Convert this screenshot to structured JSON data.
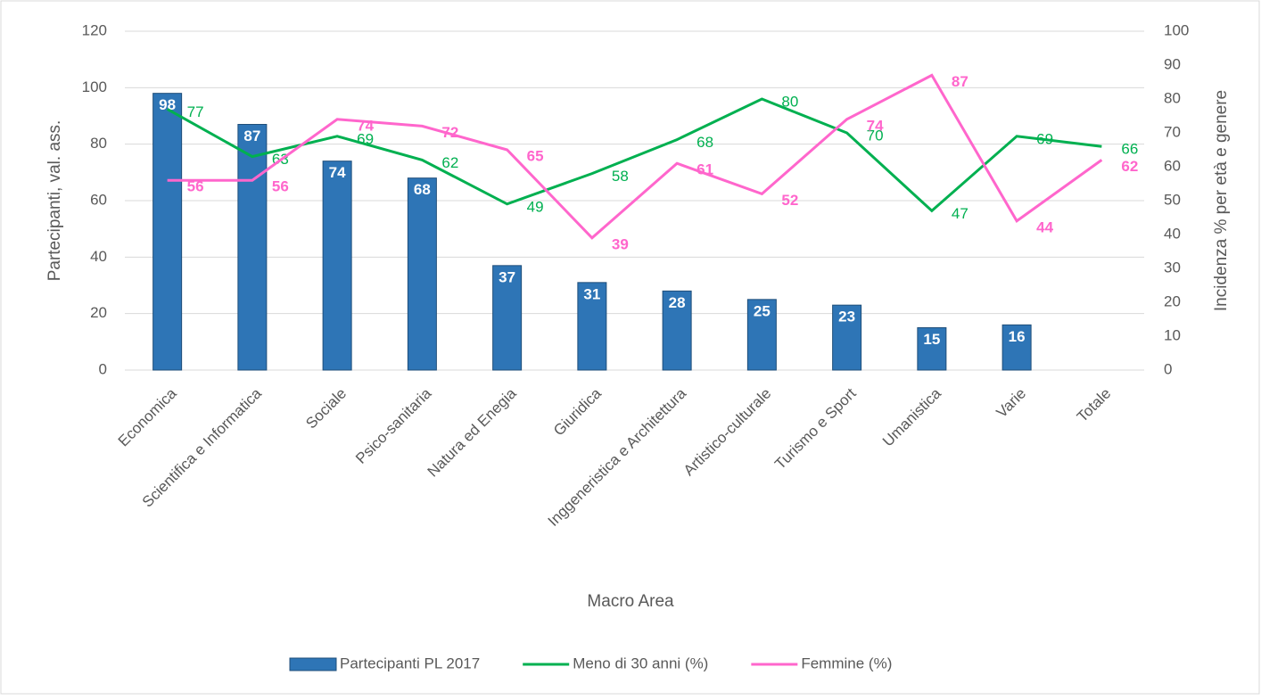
{
  "chart_data": {
    "type": "bar_line",
    "x_label": "Macro Area",
    "y_label": "Partecipanti, val. ass.",
    "y2_label": "Incidenza %  per età e  genere",
    "categories": [
      "Economica",
      "Scientifica e Informatica",
      "Sociale",
      "Psico-sanitaria",
      "Natura ed Enegia",
      "Giuridica",
      "Inggeneristica e Architettura",
      "Artistico-culturale",
      "Turismo e Sport",
      "Umanistica",
      "Varie",
      "Totale"
    ],
    "series": [
      {
        "name": "Partecipanti PL 2017",
        "type": "bar",
        "color": "#2e75b6",
        "values": [
          98,
          87,
          74,
          68,
          37,
          31,
          28,
          25,
          23,
          15,
          16,
          null
        ]
      },
      {
        "name": "Meno di 30 anni (%)",
        "type": "line",
        "axis": "y2",
        "color": "#00b050",
        "values": [
          77,
          63,
          69,
          62,
          49,
          58,
          68,
          80,
          70,
          47,
          69,
          66
        ]
      },
      {
        "name": "Femmine (%)",
        "type": "line",
        "axis": "y2",
        "color": "#ff66cc",
        "values": [
          56,
          56,
          74,
          72,
          65,
          39,
          61,
          52,
          74,
          87,
          44,
          62
        ]
      }
    ],
    "ylim": [
      0,
      120
    ],
    "yticks": [
      0,
      20,
      40,
      60,
      80,
      100,
      120
    ],
    "y2lim": [
      0,
      100
    ],
    "y2ticks": [
      0,
      10,
      20,
      30,
      40,
      50,
      60,
      70,
      80,
      90,
      100
    ],
    "grid": true,
    "legend": "bottom"
  }
}
